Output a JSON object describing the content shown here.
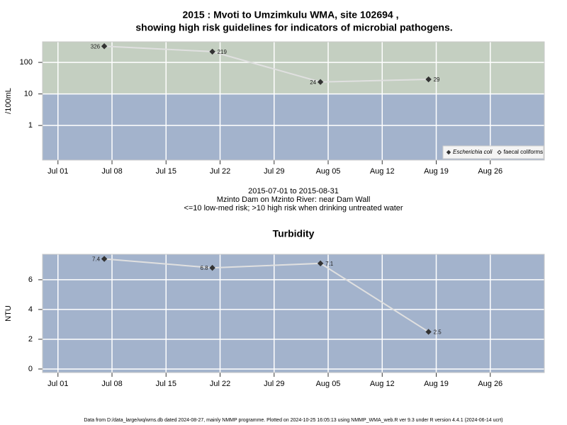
{
  "title": [
    "2015 : Mvoti to Umzimkulu WMA, site 102694 ,",
    "showing high risk guidelines for indicators of microbial pathogens."
  ],
  "caption": [
    "2015-07-01 to 2015-08-31",
    "Mzinto Dam on Mzinto River: near Dam Wall",
    "<=10 low-med risk; >10 high risk when drinking untreated water"
  ],
  "footer": "Data from D:/data_large/wq/wms.db dated 2024-08-27, mainly NMMP programme. Plotted on 2024-10-25 16:05:13 using NMMP_WMA_web.R ver 9.3 under R version 4.4.1 (2024-06-14 ucrt)",
  "chart_data": [
    {
      "type": "line",
      "ylabel": "/100mL",
      "log_scale": true,
      "grid": true,
      "x": [
        "2015-07-07",
        "2015-07-21",
        "2015-08-04",
        "2015-08-18"
      ],
      "series": [
        {
          "name": "Escherichia coli",
          "color": "#333333",
          "line_color": "#e0e0e0",
          "marker": "filled",
          "values": [
            326,
            219,
            24,
            29
          ]
        },
        {
          "name": "faecal coliforms",
          "color": "#333333",
          "line_color": "#e0e0e0",
          "marker": "open",
          "values": [
            null,
            null,
            null,
            null
          ]
        }
      ],
      "ylim": [
        0.08,
        450
      ],
      "yticks": [
        1,
        10,
        100
      ],
      "xlim": [
        "2015-06-29",
        "2015-09-02"
      ],
      "xticks": [
        {
          "value": "2015-07-01",
          "label": "Jul 01"
        },
        {
          "value": "2015-07-08",
          "label": "Jul 08"
        },
        {
          "value": "2015-07-15",
          "label": "Jul 15"
        },
        {
          "value": "2015-07-22",
          "label": "Jul 22"
        },
        {
          "value": "2015-07-29",
          "label": "Jul 29"
        },
        {
          "value": "2015-08-05",
          "label": "Aug 05"
        },
        {
          "value": "2015-08-12",
          "label": "Aug 12"
        },
        {
          "value": "2015-08-19",
          "label": "Aug 19"
        },
        {
          "value": "2015-08-26",
          "label": "Aug 26"
        }
      ],
      "threshold": {
        "value": 10,
        "above_color": "#c4cfc1",
        "below_color": "#a3b3cc"
      },
      "legend": "bottom-right"
    },
    {
      "type": "line",
      "title": "Turbidity",
      "ylabel": "NTU",
      "log_scale": false,
      "grid": true,
      "x": [
        "2015-07-07",
        "2015-07-21",
        "2015-08-04",
        "2015-08-18"
      ],
      "series": [
        {
          "color": "#333333",
          "line_color": "#e0e0e0",
          "marker": "filled",
          "values": [
            7.4,
            6.8,
            7.1,
            2.5
          ]
        }
      ],
      "ylim": [
        -0.24,
        7.71
      ],
      "yticks": [
        0,
        2,
        4,
        6
      ],
      "xlim": [
        "2015-06-29",
        "2015-09-02"
      ],
      "xticks": [
        {
          "value": "2015-07-01",
          "label": "Jul 01"
        },
        {
          "value": "2015-07-08",
          "label": "Jul 08"
        },
        {
          "value": "2015-07-15",
          "label": "Jul 15"
        },
        {
          "value": "2015-07-22",
          "label": "Jul 22"
        },
        {
          "value": "2015-07-29",
          "label": "Jul 29"
        },
        {
          "value": "2015-08-05",
          "label": "Aug 05"
        },
        {
          "value": "2015-08-12",
          "label": "Aug 12"
        },
        {
          "value": "2015-08-19",
          "label": "Aug 19"
        },
        {
          "value": "2015-08-26",
          "label": "Aug 26"
        }
      ],
      "background": "#a3b3cc"
    }
  ]
}
